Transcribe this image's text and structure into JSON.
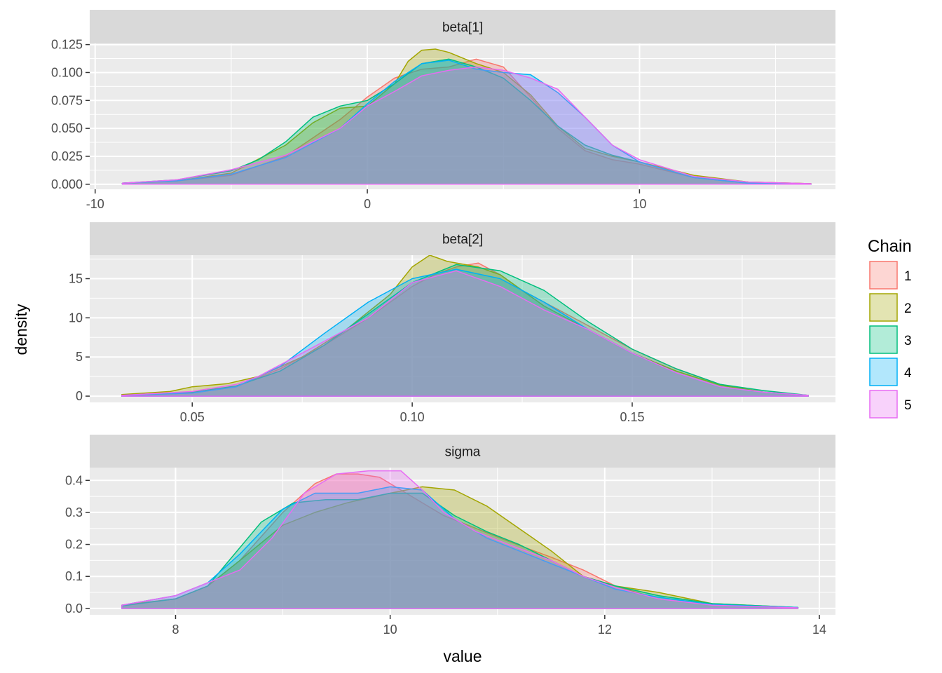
{
  "chart_data": {
    "type": "area",
    "xlabel": "value",
    "ylabel": "density",
    "legend": {
      "title": "Chain",
      "placement": "right",
      "entries": [
        {
          "name": "1",
          "color": "#F8766D"
        },
        {
          "name": "2",
          "color": "#A3A500"
        },
        {
          "name": "3",
          "color": "#00BF7D"
        },
        {
          "name": "4",
          "color": "#00B0F6"
        },
        {
          "name": "5",
          "color": "#E76BF3"
        }
      ]
    },
    "facets": [
      {
        "label": "beta[1]",
        "xlim": [
          -10.2,
          17.2
        ],
        "ylim": [
          -0.0045,
          0.126
        ],
        "xticks": [
          -10,
          0,
          10
        ],
        "xtick_labels": [
          "-10",
          "0",
          "10"
        ],
        "yticks": [
          0,
          0.025,
          0.05,
          0.075,
          0.1,
          0.125
        ],
        "ytick_labels": [
          "0.000",
          "0.025",
          "0.050",
          "0.075",
          "0.100",
          "0.125"
        ],
        "series": [
          {
            "name": "1",
            "x": [
              -9,
              -7,
              -5,
              -3,
              -1,
              0,
              1,
              2,
              3,
              4,
              5,
              6,
              7,
              8,
              9,
              10,
              12,
              14,
              16.3
            ],
            "y": [
              0.001,
              0.003,
              0.008,
              0.025,
              0.058,
              0.078,
              0.095,
              0.103,
              0.105,
              0.112,
              0.105,
              0.078,
              0.05,
              0.03,
              0.022,
              0.018,
              0.006,
              0.002,
              0.0005
            ]
          },
          {
            "name": "2",
            "x": [
              -9,
              -7,
              -5,
              -3,
              -2,
              -1,
              0,
              1,
              1.5,
              2,
              2.5,
              3,
              4,
              5,
              6,
              7,
              8,
              9,
              10,
              12,
              14,
              16.3
            ],
            "y": [
              0.001,
              0.003,
              0.01,
              0.035,
              0.055,
              0.068,
              0.07,
              0.09,
              0.11,
              0.12,
              0.121,
              0.118,
              0.108,
              0.1,
              0.08,
              0.052,
              0.032,
              0.025,
              0.02,
              0.008,
              0.002,
              0.0005
            ]
          },
          {
            "name": "3",
            "x": [
              -9,
              -7,
              -5,
              -4,
              -3,
              -2,
              -1,
              0,
              1,
              2,
              3,
              4,
              5,
              6,
              7,
              8,
              9,
              10,
              12,
              14,
              16.3
            ],
            "y": [
              0.001,
              0.004,
              0.012,
              0.022,
              0.038,
              0.06,
              0.07,
              0.075,
              0.09,
              0.108,
              0.112,
              0.105,
              0.095,
              0.075,
              0.052,
              0.035,
              0.026,
              0.02,
              0.006,
              0.001,
              0.0003
            ]
          },
          {
            "name": "4",
            "x": [
              -9,
              -7,
              -5,
              -3,
              -1,
              0,
              1,
              2,
              3,
              4,
              5,
              6,
              7,
              8,
              9,
              10,
              12,
              14,
              16.3
            ],
            "y": [
              0.001,
              0.003,
              0.009,
              0.024,
              0.05,
              0.072,
              0.092,
              0.108,
              0.111,
              0.103,
              0.1,
              0.098,
              0.082,
              0.06,
              0.035,
              0.02,
              0.006,
              0.001,
              0.0003
            ]
          },
          {
            "name": "5",
            "x": [
              -9,
              -7,
              -5,
              -3,
              -1,
              0,
              1,
              2,
              3,
              4,
              5,
              6,
              7,
              8,
              9,
              10,
              12,
              14,
              16.3
            ],
            "y": [
              0.001,
              0.004,
              0.013,
              0.026,
              0.05,
              0.07,
              0.083,
              0.097,
              0.102,
              0.105,
              0.102,
              0.095,
              0.085,
              0.06,
              0.035,
              0.022,
              0.007,
              0.002,
              0.0005
            ]
          }
        ]
      },
      {
        "label": "beta[2]",
        "xlim": [
          0.0267,
          0.1962
        ],
        "ylim": [
          -0.8,
          18.0
        ],
        "xticks": [
          0.05,
          0.1,
          0.15
        ],
        "xtick_labels": [
          "0.05",
          "0.10",
          "0.15"
        ],
        "yticks": [
          0,
          5,
          10,
          15
        ],
        "ytick_labels": [
          "0",
          "5",
          "10",
          "15"
        ],
        "series": [
          {
            "name": "1",
            "x": [
              0.034,
              0.05,
              0.06,
              0.07,
              0.08,
              0.09,
              0.1,
              0.105,
              0.11,
              0.115,
              0.12,
              0.125,
              0.13,
              0.14,
              0.15,
              0.16,
              0.17,
              0.18,
              0.19
            ],
            "y": [
              0.1,
              0.4,
              1.2,
              3.5,
              6.5,
              10.0,
              14.0,
              15.5,
              16.5,
              17.0,
              15.5,
              13.5,
              12.0,
              9.0,
              6.0,
              3.5,
              1.5,
              0.5,
              0.1
            ]
          },
          {
            "name": "2",
            "x": [
              0.034,
              0.045,
              0.05,
              0.058,
              0.065,
              0.075,
              0.085,
              0.095,
              0.1,
              0.104,
              0.108,
              0.115,
              0.12,
              0.13,
              0.14,
              0.15,
              0.16,
              0.17,
              0.18,
              0.19
            ],
            "y": [
              0.2,
              0.6,
              1.2,
              1.6,
              2.5,
              5.0,
              8.5,
              13.0,
              16.5,
              18.0,
              17.2,
              16.5,
              15.5,
              11.5,
              8.5,
              5.5,
              3.2,
              1.4,
              0.5,
              0.1
            ]
          },
          {
            "name": "3",
            "x": [
              0.034,
              0.05,
              0.06,
              0.07,
              0.08,
              0.09,
              0.1,
              0.11,
              0.12,
              0.13,
              0.14,
              0.15,
              0.16,
              0.17,
              0.18,
              0.19
            ],
            "y": [
              0.1,
              0.5,
              1.3,
              3.2,
              6.5,
              10.5,
              14.5,
              16.8,
              16.0,
              13.5,
              9.5,
              6.0,
              3.5,
              1.5,
              0.7,
              0.1
            ]
          },
          {
            "name": "4",
            "x": [
              0.034,
              0.05,
              0.06,
              0.07,
              0.08,
              0.09,
              0.1,
              0.11,
              0.12,
              0.13,
              0.14,
              0.15,
              0.16,
              0.17,
              0.18,
              0.19
            ],
            "y": [
              0.1,
              0.4,
              1.2,
              3.8,
              8.0,
              12.0,
              15.0,
              16.2,
              15.0,
              12.0,
              8.5,
              5.5,
              3.0,
              1.2,
              0.5,
              0.1
            ]
          },
          {
            "name": "5",
            "x": [
              0.034,
              0.05,
              0.06,
              0.065,
              0.07,
              0.08,
              0.09,
              0.1,
              0.11,
              0.12,
              0.13,
              0.14,
              0.15,
              0.16,
              0.17,
              0.18,
              0.19
            ],
            "y": [
              0.1,
              0.6,
              1.5,
              2.5,
              4.0,
              7.0,
              10.0,
              14.5,
              16.0,
              14.0,
              11.0,
              8.5,
              5.5,
              3.0,
              1.2,
              0.5,
              0.1
            ]
          }
        ]
      },
      {
        "label": "sigma",
        "xlim": [
          7.2,
          14.15
        ],
        "ylim": [
          -0.02,
          0.44
        ],
        "xticks": [
          8,
          10,
          12,
          14
        ],
        "xtick_labels": [
          "8",
          "10",
          "12",
          "14"
        ],
        "yticks": [
          0,
          0.1,
          0.2,
          0.3,
          0.4
        ],
        "ytick_labels": [
          "0.0",
          "0.1",
          "0.2",
          "0.3",
          "0.4"
        ],
        "series": [
          {
            "name": "1",
            "x": [
              7.5,
              8.0,
              8.3,
              8.6,
              9.0,
              9.3,
              9.5,
              9.7,
              9.9,
              10.2,
              10.5,
              10.8,
              11.1,
              11.5,
              11.8,
              12.1,
              12.5,
              13.0,
              13.8
            ],
            "y": [
              0.01,
              0.03,
              0.07,
              0.15,
              0.3,
              0.39,
              0.42,
              0.42,
              0.41,
              0.35,
              0.29,
              0.25,
              0.21,
              0.16,
              0.12,
              0.07,
              0.03,
              0.01,
              0.002
            ]
          },
          {
            "name": "2",
            "x": [
              7.5,
              8.0,
              8.3,
              8.6,
              9.0,
              9.3,
              9.6,
              10.0,
              10.3,
              10.6,
              10.9,
              11.2,
              11.5,
              11.8,
              12.1,
              12.5,
              13.0,
              13.8
            ],
            "y": [
              0.01,
              0.03,
              0.07,
              0.15,
              0.26,
              0.3,
              0.33,
              0.36,
              0.38,
              0.37,
              0.32,
              0.25,
              0.18,
              0.1,
              0.07,
              0.05,
              0.015,
              0.003
            ]
          },
          {
            "name": "3",
            "x": [
              7.5,
              8.0,
              8.3,
              8.5,
              8.8,
              9.1,
              9.4,
              9.7,
              10.0,
              10.3,
              10.6,
              10.9,
              11.2,
              11.5,
              11.8,
              12.1,
              12.5,
              13.0,
              13.8
            ],
            "y": [
              0.008,
              0.03,
              0.07,
              0.15,
              0.27,
              0.33,
              0.34,
              0.34,
              0.36,
              0.36,
              0.29,
              0.24,
              0.2,
              0.15,
              0.1,
              0.07,
              0.04,
              0.015,
              0.003
            ]
          },
          {
            "name": "4",
            "x": [
              7.5,
              8.0,
              8.3,
              8.6,
              9.0,
              9.3,
              9.7,
              10.0,
              10.3,
              10.6,
              10.9,
              11.2,
              11.5,
              11.8,
              12.1,
              12.5,
              13.0,
              13.8
            ],
            "y": [
              0.01,
              0.04,
              0.08,
              0.17,
              0.31,
              0.36,
              0.36,
              0.38,
              0.37,
              0.28,
              0.22,
              0.18,
              0.14,
              0.1,
              0.06,
              0.035,
              0.012,
              0.003
            ]
          },
          {
            "name": "5",
            "x": [
              7.5,
              8.0,
              8.3,
              8.6,
              8.9,
              9.2,
              9.5,
              9.8,
              10.1,
              10.3,
              10.5,
              10.8,
              11.1,
              11.5,
              11.8,
              12.1,
              12.5,
              13.0,
              13.8
            ],
            "y": [
              0.01,
              0.04,
              0.08,
              0.12,
              0.22,
              0.36,
              0.42,
              0.43,
              0.43,
              0.37,
              0.3,
              0.24,
              0.2,
              0.15,
              0.1,
              0.065,
              0.03,
              0.01,
              0.002
            ]
          }
        ]
      }
    ]
  }
}
